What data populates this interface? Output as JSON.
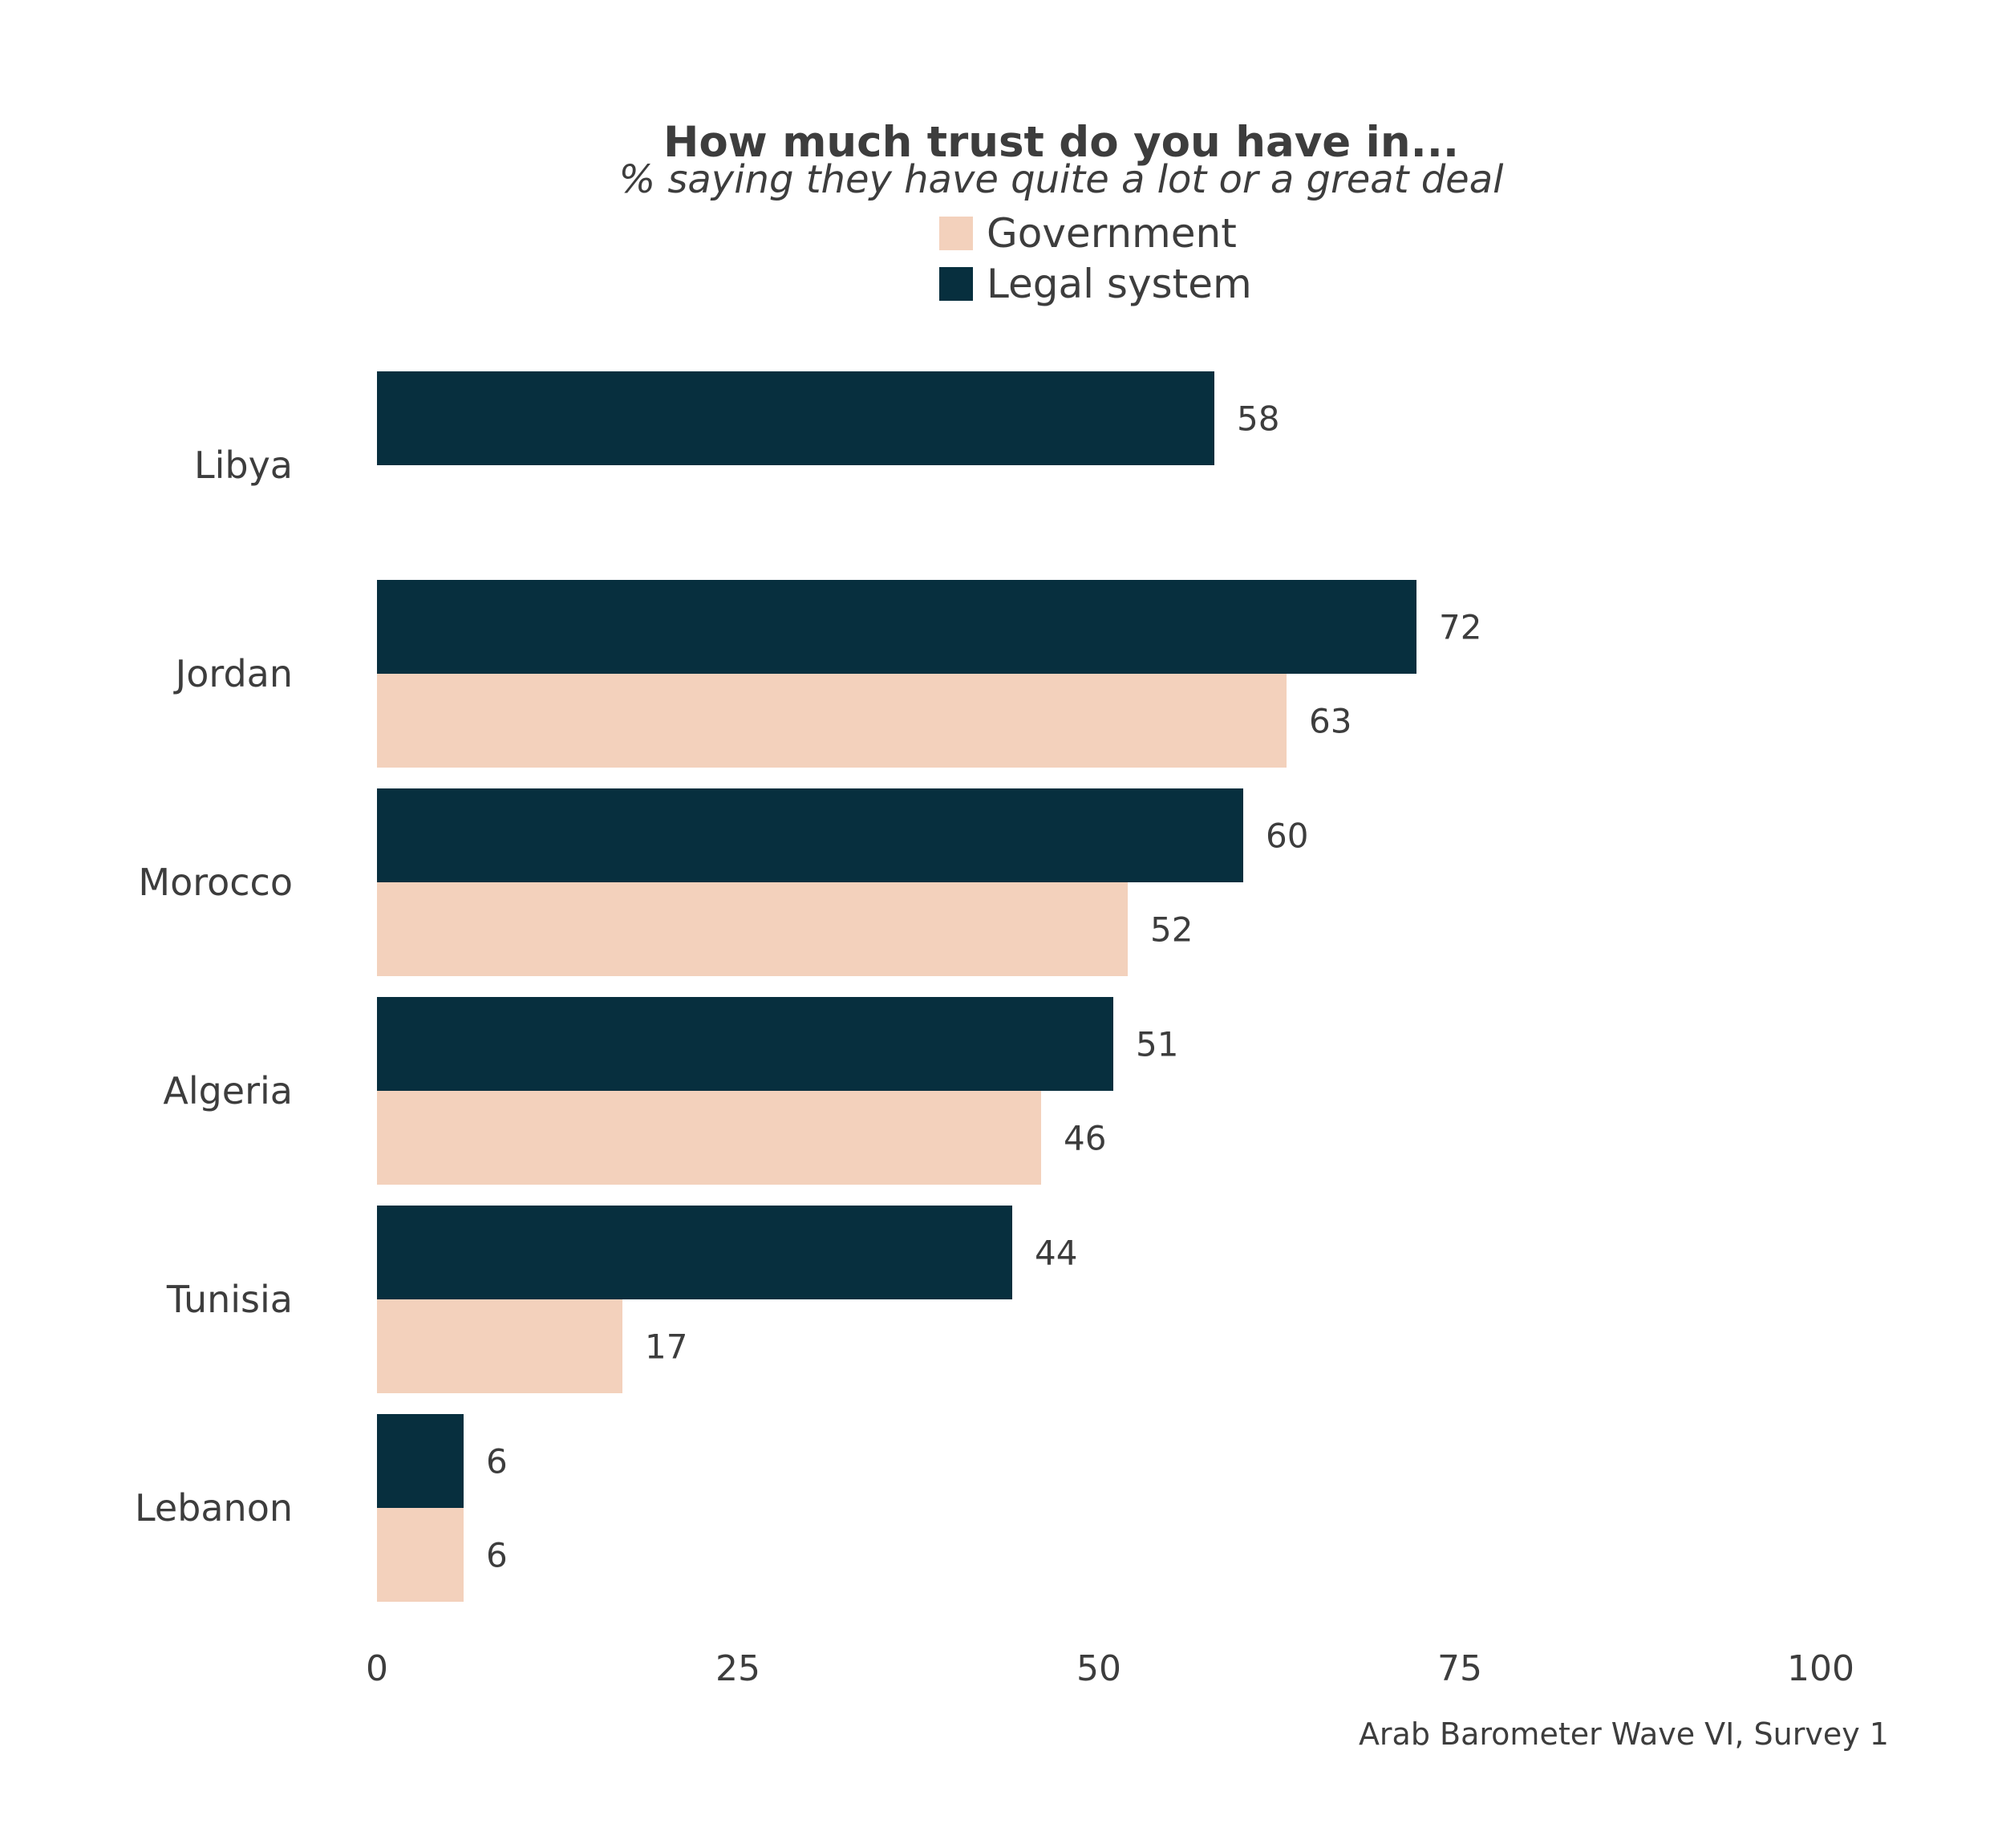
{
  "chart_data": {
    "type": "bar",
    "orientation": "horizontal",
    "title": "How much trust do you have in...",
    "subtitle": "% saying they have quite a lot or a great deal",
    "caption": "Arab Barometer Wave VI, Survey 1",
    "categories": [
      "Libya",
      "Jordan",
      "Morocco",
      "Algeria",
      "Tunisia",
      "Lebanon"
    ],
    "series": [
      {
        "name": "Legal system",
        "color": "#072f3e",
        "values": [
          58,
          72,
          60,
          51,
          44,
          6
        ]
      },
      {
        "name": "Government",
        "color": "#f3d1bc",
        "values": [
          null,
          63,
          52,
          46,
          17,
          6
        ]
      }
    ],
    "legend": [
      {
        "name": "Government",
        "color": "#f3d1bc"
      },
      {
        "name": "Legal system",
        "color": "#072f3e"
      }
    ],
    "legend_position": "top-center",
    "xlim": [
      0,
      100
    ],
    "xticks": [
      "0",
      "25",
      "50",
      "75",
      "100"
    ],
    "grid": false
  }
}
